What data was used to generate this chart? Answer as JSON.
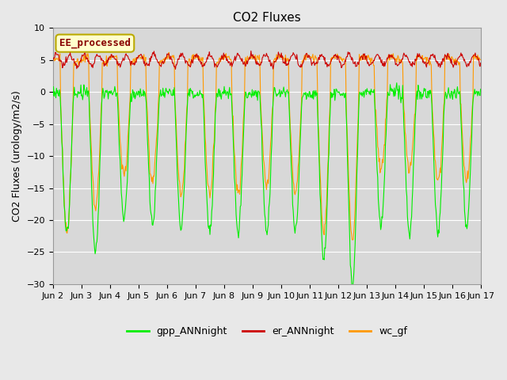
{
  "title": "CO2 Fluxes",
  "ylabel": "CO2 Fluxes (urology/m2/s)",
  "xlabel": "",
  "ylim": [
    -30,
    10
  ],
  "background_color": "#e8e8e8",
  "plot_bg_color": "#d8d8d8",
  "grid_color": "#ffffff",
  "annotation_text": "EE_processed",
  "annotation_bg": "#ffffcc",
  "annotation_border": "#bbaa00",
  "annotation_text_color": "#880000",
  "legend_entries": [
    "gpp_ANNnight",
    "er_ANNnight",
    "wc_gf"
  ],
  "legend_colors": [
    "#00ee00",
    "#cc0000",
    "#ff9900"
  ],
  "line_width": 0.8,
  "n_days": 15,
  "n_per_day": 48,
  "xtick_labels": [
    "Jun 2",
    "Jun 3",
    "Jun 4",
    "Jun 5",
    "Jun 6",
    "Jun 7",
    "Jun 8",
    "Jun 9",
    "Jun 10",
    "Jun 11",
    "Jun 12",
    "Jun 13",
    "Jun 14",
    "Jun 15",
    "Jun 16",
    "Jun 17"
  ],
  "title_fontsize": 11,
  "label_fontsize": 9,
  "tick_fontsize": 8,
  "gpp_depths": [
    22,
    25,
    20,
    21,
    21,
    22,
    22,
    22,
    22,
    26,
    30,
    21,
    22,
    22,
    21
  ],
  "wc_depths": [
    22,
    18,
    13,
    14,
    16,
    16,
    16,
    15,
    16,
    22,
    23,
    12,
    12,
    14,
    14
  ]
}
